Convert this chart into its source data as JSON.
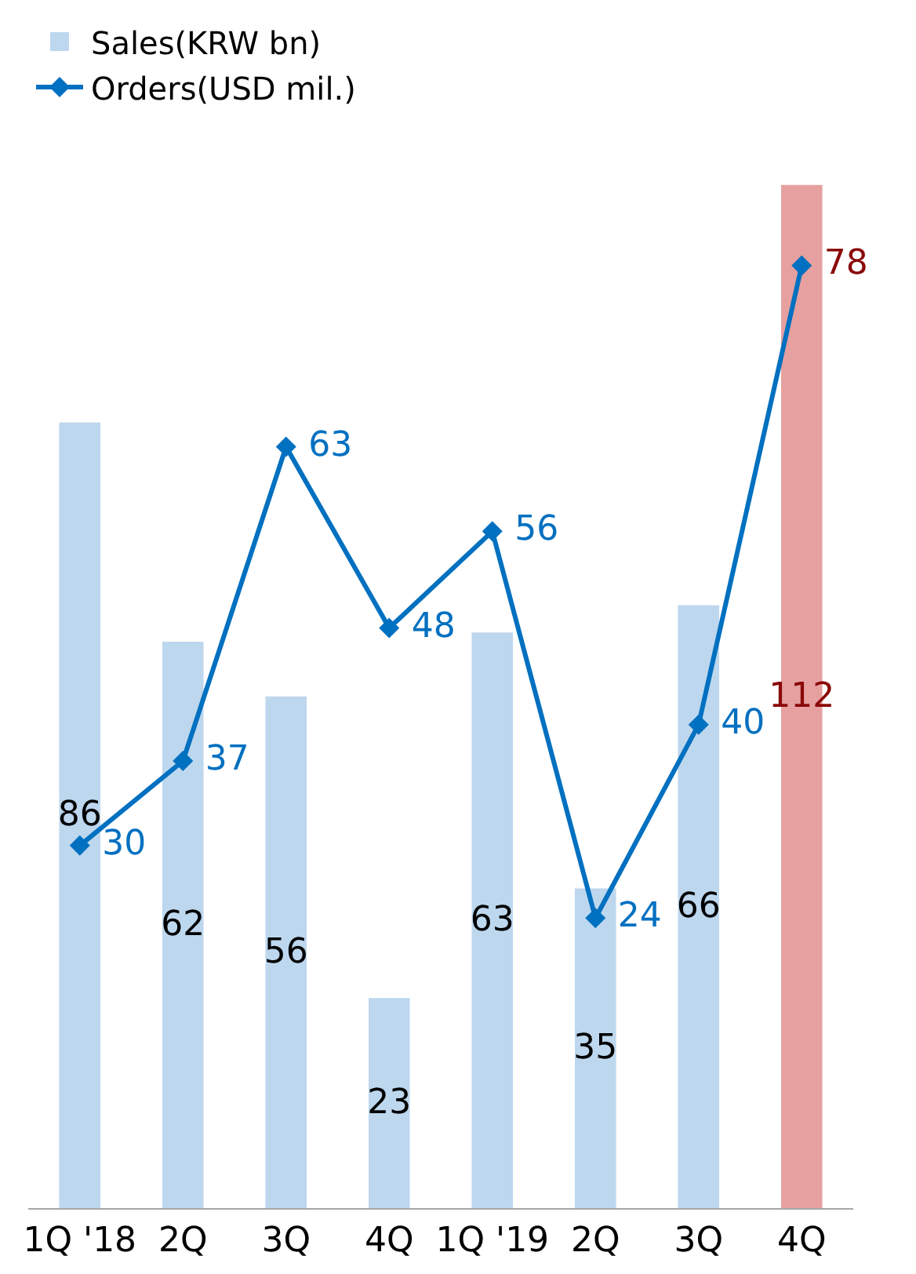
{
  "chart_data": {
    "type": "bar",
    "categories": [
      "1Q '18",
      "2Q",
      "3Q",
      "4Q",
      "1Q '19",
      "2Q",
      "3Q",
      "4Q"
    ],
    "series": [
      {
        "name": "Sales(KRW bn)",
        "color": "#bdd7ee",
        "colors": [
          "#bdd7ee",
          "#bdd7ee",
          "#bdd7ee",
          "#bdd7ee",
          "#bdd7ee",
          "#bdd7ee",
          "#bdd7ee",
          "#e6a0a0"
        ],
        "values": [
          86,
          62,
          56,
          23,
          63,
          35,
          66,
          112
        ]
      },
      {
        "name": "Orders(USD mil.)",
        "type": "line",
        "axis": "y2",
        "color": "#0070c0",
        "values": [
          30,
          37,
          63,
          48,
          56,
          24,
          40,
          78
        ]
      }
    ],
    "data_labels": true,
    "legend": "top left",
    "marker": "diamond",
    "line_style": "solid",
    "tick_labels": "x"
  }
}
